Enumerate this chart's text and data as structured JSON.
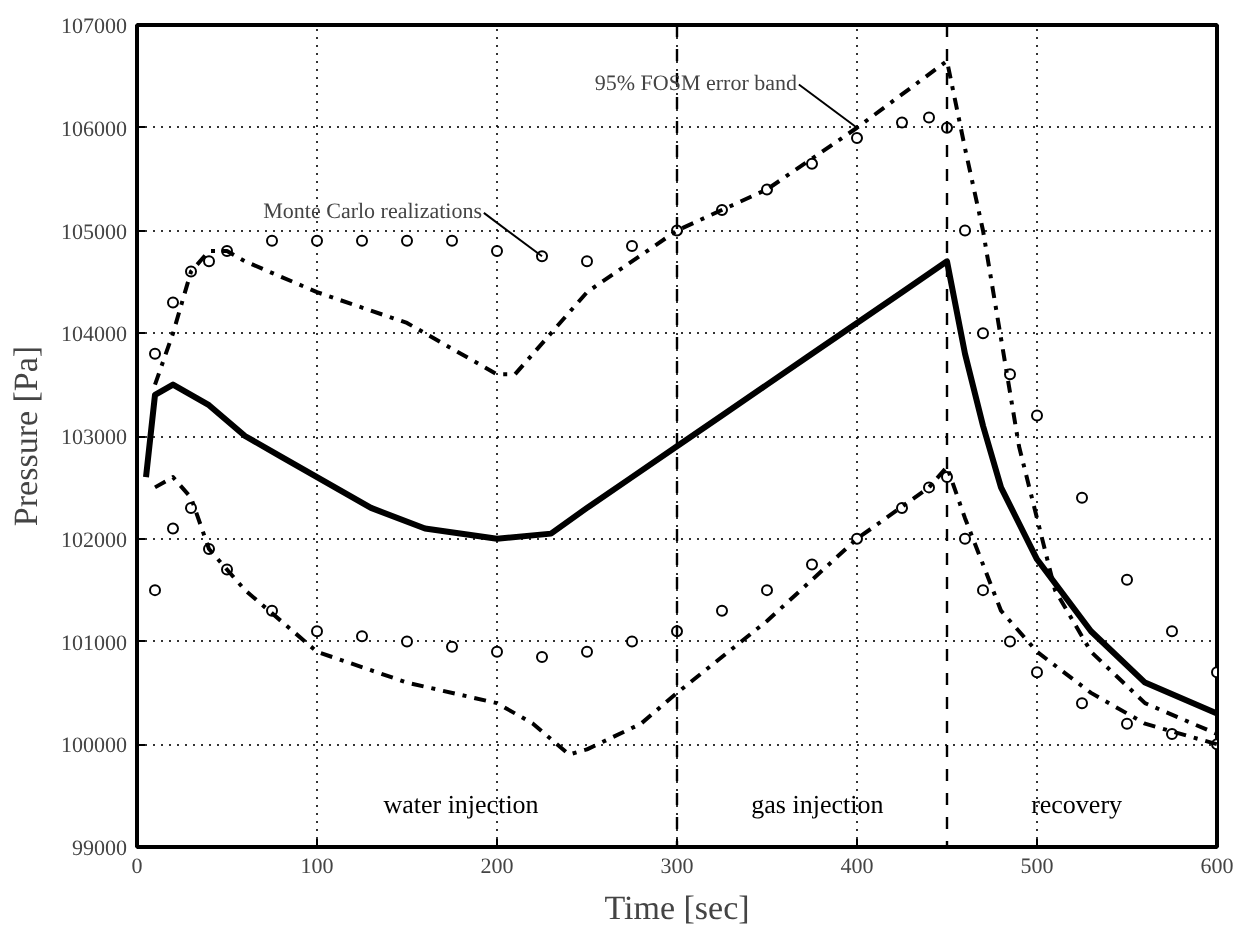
{
  "chart_data": {
    "type": "line",
    "xlabel": "Time [sec]",
    "ylabel": "Pressure [Pa]",
    "xlim": [
      0,
      600
    ],
    "xticks": [
      0,
      100,
      200,
      300,
      400,
      500,
      600
    ],
    "ylim": [
      99000,
      107000
    ],
    "yticks": [
      99000,
      100000,
      101000,
      102000,
      103000,
      104000,
      105000,
      106000,
      107000
    ],
    "grid": true,
    "series": [
      {
        "type": "scatter",
        "marker": "circle",
        "color": "#000000",
        "x": [
          10,
          20,
          30,
          40,
          50,
          75,
          100,
          125,
          150,
          175,
          200,
          225,
          250,
          275,
          300,
          325,
          350,
          375,
          400,
          425,
          440,
          450,
          460,
          470,
          485,
          500,
          525,
          550,
          575,
          600
        ],
        "values": [
          103800,
          104300,
          104600,
          104700,
          104800,
          104900,
          104900,
          104900,
          104900,
          104900,
          104800,
          104750,
          104700,
          104850,
          105000,
          105200,
          105400,
          105650,
          105900,
          106050,
          106100,
          106000,
          105000,
          104000,
          103600,
          103200,
          102400,
          101600,
          101100,
          100700
        ]
      },
      {
        "type": "scatter",
        "marker": "circle",
        "color": "#000000",
        "x": [
          10,
          20,
          30,
          40,
          50,
          75,
          100,
          125,
          150,
          175,
          200,
          225,
          250,
          275,
          300,
          325,
          350,
          375,
          400,
          425,
          440,
          450,
          460,
          470,
          485,
          500,
          525,
          550,
          575,
          600
        ],
        "values": [
          101500,
          102100,
          102300,
          101900,
          101700,
          101300,
          101100,
          101050,
          101000,
          100950,
          100900,
          100850,
          100900,
          101000,
          101100,
          101300,
          101500,
          101750,
          102000,
          102300,
          102500,
          102600,
          102000,
          101500,
          101000,
          100700,
          100400,
          100200,
          100100,
          100000
        ]
      },
      {
        "line_style": "solid",
        "color": "#000000",
        "x": [
          5,
          10,
          20,
          40,
          60,
          80,
          100,
          130,
          160,
          200,
          230,
          250,
          275,
          300,
          325,
          350,
          375,
          400,
          425,
          450,
          460,
          470,
          480,
          500,
          530,
          560,
          600
        ],
        "values": [
          102600,
          103400,
          103500,
          103300,
          103000,
          102800,
          102600,
          102300,
          102100,
          102000,
          102050,
          102300,
          102600,
          102900,
          103200,
          103500,
          103800,
          104100,
          104400,
          104700,
          103800,
          103100,
          102500,
          101800,
          101100,
          100600,
          100300
        ]
      },
      {
        "line_style": "dashdot",
        "color": "#000000",
        "x": [
          10,
          20,
          30,
          40,
          50,
          60,
          100,
          150,
          200,
          210,
          230,
          250,
          300,
          350,
          400,
          450,
          460,
          470,
          490,
          510,
          530,
          560,
          600
        ],
        "values": [
          103500,
          104000,
          104600,
          104800,
          104800,
          104700,
          104400,
          104100,
          103600,
          103600,
          104000,
          104400,
          105000,
          105400,
          106000,
          106650,
          105800,
          105000,
          102900,
          101500,
          100900,
          100400,
          100100
        ]
      },
      {
        "line_style": "dashdot",
        "color": "#000000",
        "x": [
          10,
          20,
          30,
          40,
          60,
          100,
          150,
          200,
          220,
          240,
          250,
          280,
          300,
          350,
          400,
          440,
          450,
          460,
          480,
          500,
          530,
          560,
          600
        ],
        "values": [
          102500,
          102600,
          102400,
          101900,
          101500,
          100900,
          100600,
          100400,
          100200,
          99900,
          99950,
          100200,
          100500,
          101200,
          102000,
          102500,
          102700,
          102200,
          101300,
          100900,
          100500,
          100200,
          100000
        ]
      }
    ],
    "ref_lines": [
      {
        "axis": "x",
        "value": 300,
        "line_style": "dashed",
        "color": "#000000"
      },
      {
        "axis": "x",
        "value": 450,
        "line_style": "dashed",
        "color": "#000000"
      }
    ],
    "annotations": [
      {
        "text": "95% FOSM error band",
        "x": 400,
        "y": 106000
      },
      {
        "text": "Monte Carlo realizations",
        "x": 225,
        "y": 104750
      },
      "water injection",
      "gas injection",
      "recovery"
    ]
  }
}
